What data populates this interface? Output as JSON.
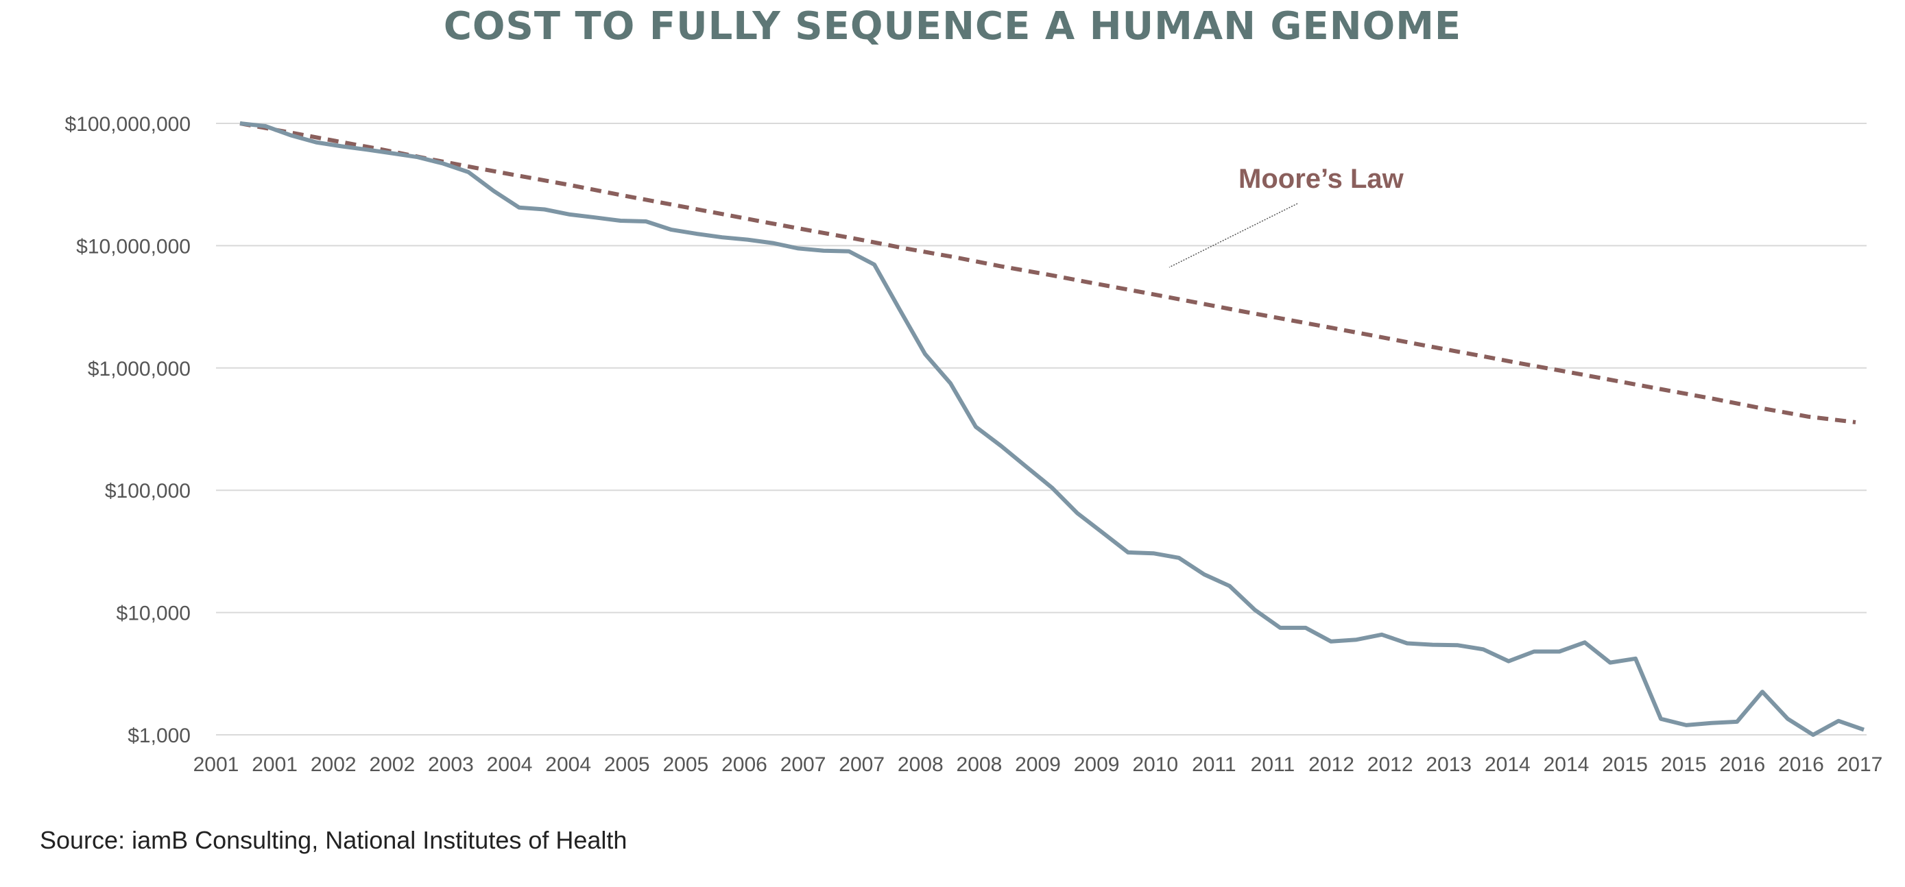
{
  "title": "COST TO FULLY SEQUENCE A HUMAN GENOME",
  "source": "Source: iamB Consulting, National Institutes of Health",
  "colors": {
    "title": "#5e7776",
    "cost_line": "#7d95a4",
    "moore_line": "#8a5f5c",
    "grid": "#d9d9d9",
    "axis_text": "#555555"
  },
  "chart_data": {
    "type": "line",
    "title": "COST TO FULLY SEQUENCE A HUMAN GENOME",
    "xlabel": "",
    "ylabel": "",
    "yscale": "log",
    "ylim": [
      1000,
      100000000
    ],
    "y_ticks": [
      100000000,
      10000000,
      1000000,
      100000,
      10000,
      1000
    ],
    "y_tick_labels": [
      "$100,000,000",
      "$10,000,000",
      "$1,000,000",
      "$100,000",
      "$10,000",
      "$1,000"
    ],
    "x_tick_labels": [
      "2001",
      "2001",
      "2002",
      "2002",
      "2003",
      "2004",
      "2004",
      "2005",
      "2005",
      "2006",
      "2007",
      "2007",
      "2008",
      "2008",
      "2009",
      "2009",
      "2010",
      "2011",
      "2011",
      "2012",
      "2012",
      "2013",
      "2014",
      "2014",
      "2015",
      "2015",
      "2016",
      "2016",
      "2017"
    ],
    "grid": true,
    "legend": "none",
    "annotations": [
      {
        "text": "Moore’s Law"
      }
    ],
    "series": [
      {
        "values": [
          100000000,
          95000000,
          80000000,
          70000000,
          65000000,
          61000000,
          57000000,
          53000000,
          47000000,
          40000000,
          28000000,
          20500000,
          19800000,
          18000000,
          17000000,
          16000000,
          15800000,
          13500000,
          12500000,
          11700000,
          11200000,
          10500000,
          9500000,
          9100000,
          9000000,
          7000000,
          3000000,
          1300000,
          750000,
          330000,
          230000,
          155000,
          105000,
          65000,
          45000,
          31000,
          30500,
          28000,
          20500,
          16500,
          10500,
          7500,
          7500,
          5800,
          6000,
          6600,
          5600,
          5450,
          5400,
          5000,
          4000,
          4800,
          4800,
          5700,
          3900,
          4200,
          1350,
          1200,
          1250,
          1280,
          2250,
          1350,
          1000,
          1300,
          1100
        ]
      },
      {
        "values": [
          100000000,
          85000000,
          72000000,
          61000000,
          51000000,
          43000000,
          36500000,
          31000000,
          26000000,
          22000000,
          18600000,
          15700000,
          13300000,
          11300000,
          9500000,
          8100000,
          6800000,
          5800000,
          4900000,
          4150000,
          3500000,
          2950000,
          2500000,
          2120000,
          1790000,
          1510000,
          1280000,
          1080000,
          920000,
          780000,
          660000,
          560000,
          470000,
          400000,
          360000
        ]
      }
    ]
  }
}
